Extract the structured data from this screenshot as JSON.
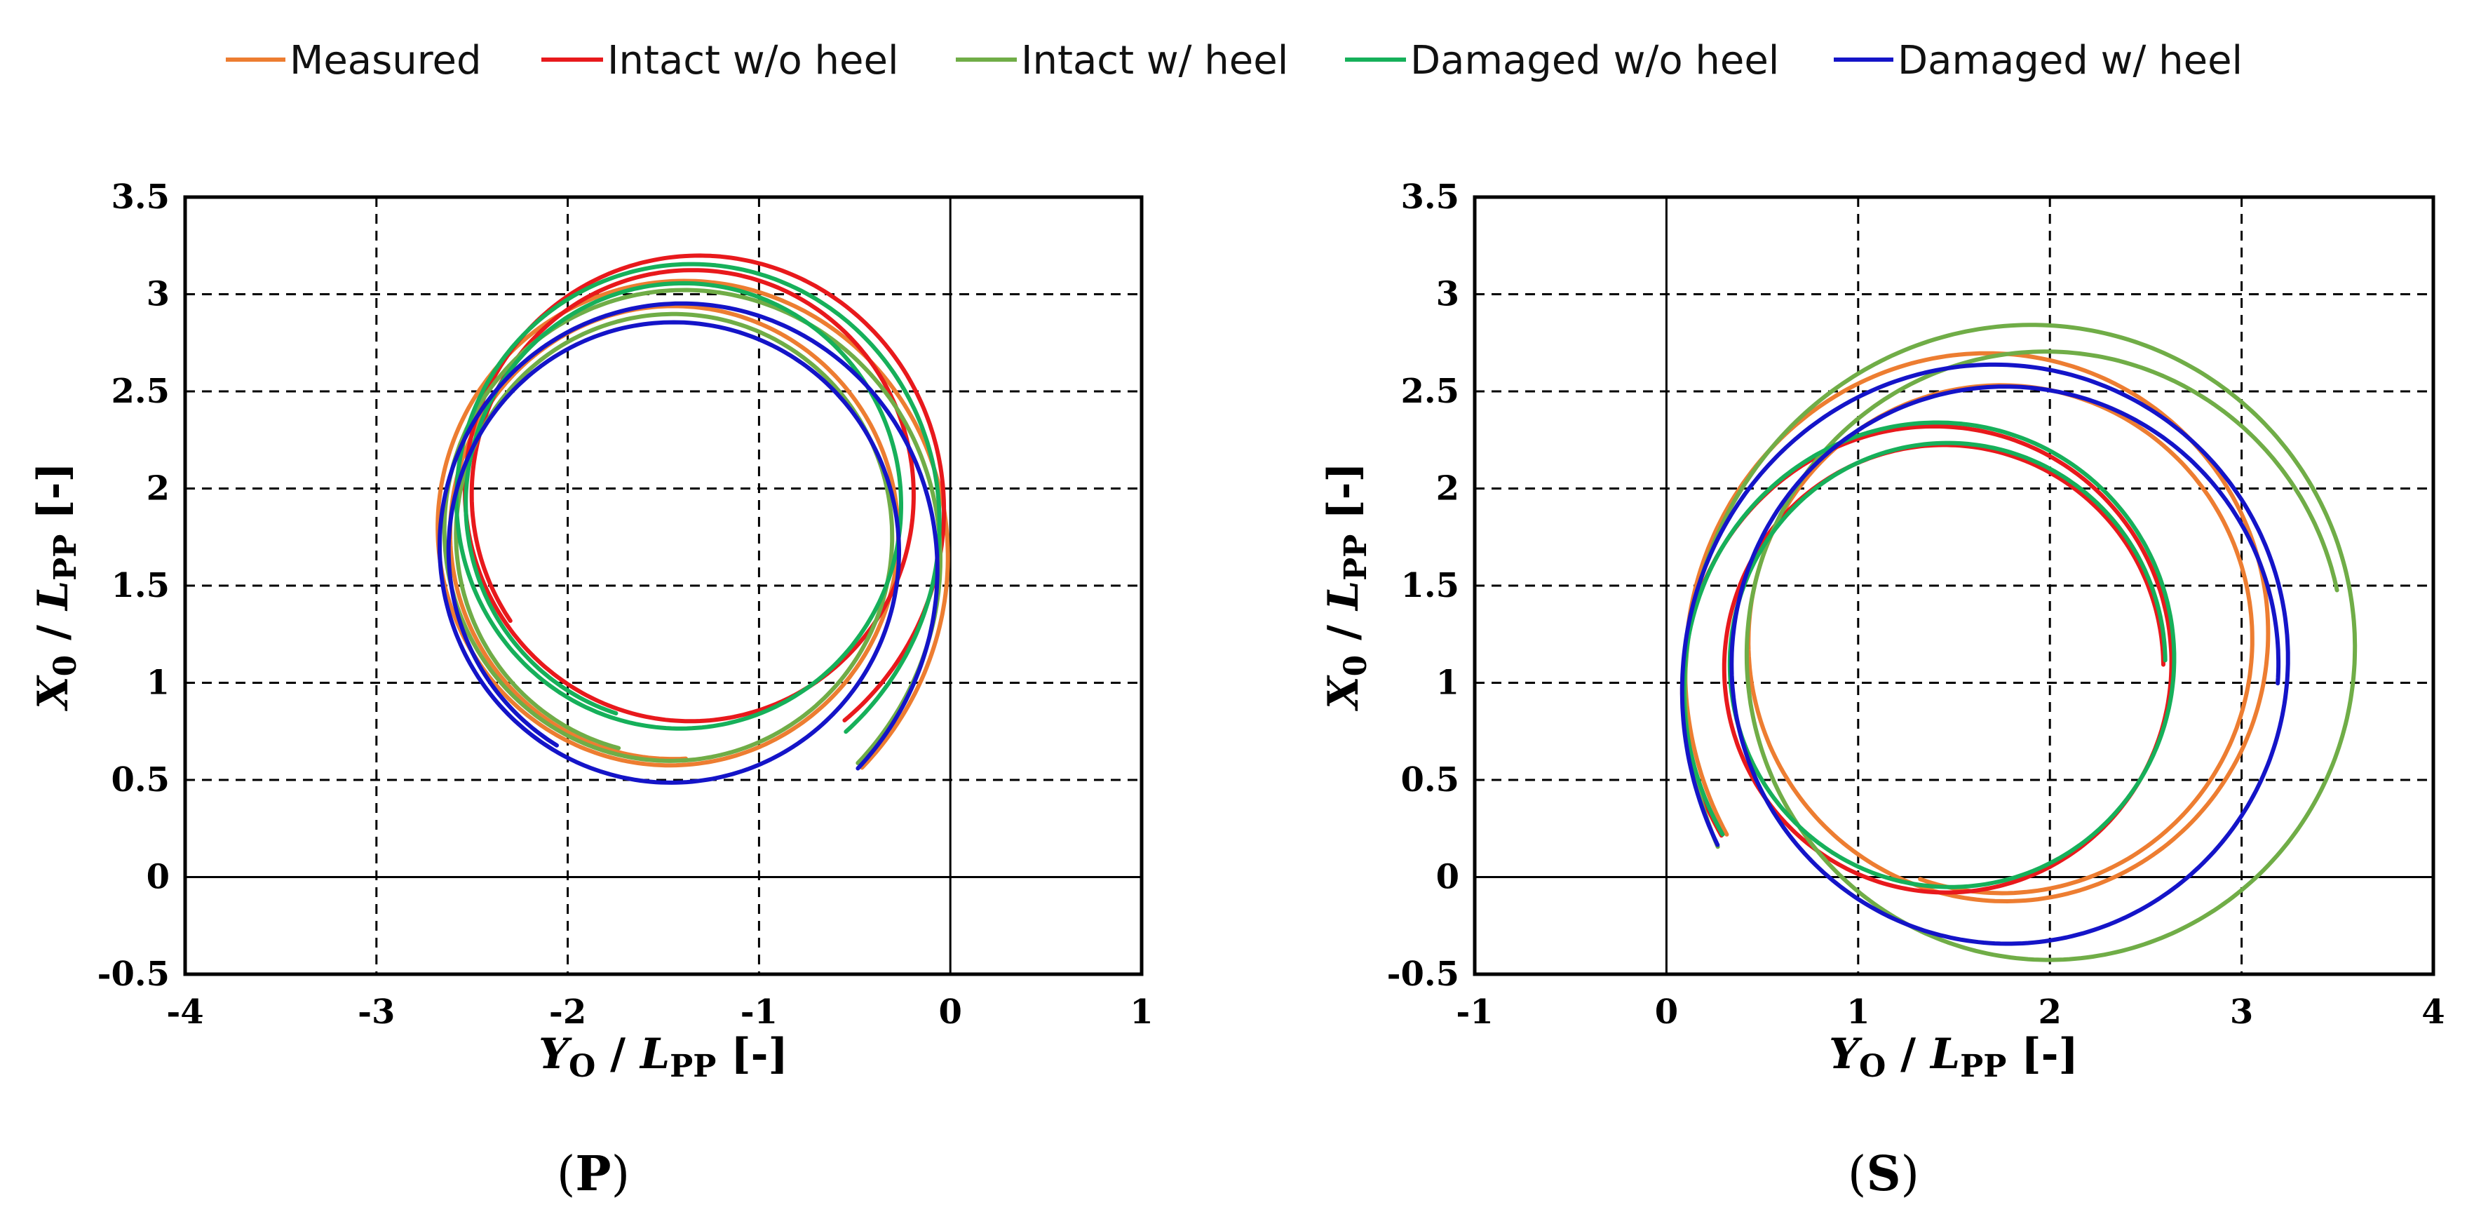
{
  "colors": {
    "measured": "#ED7D31",
    "intact_no_heel": "#E8191C",
    "intact_heel": "#70AD47",
    "damaged_no_heel": "#16B05A",
    "damaged_heel": "#1414C8"
  },
  "legend": [
    {
      "key": "measured",
      "label": "Measured"
    },
    {
      "key": "intact_no_heel",
      "label": "Intact w/o heel"
    },
    {
      "key": "intact_heel",
      "label": "Intact w/ heel"
    },
    {
      "key": "damaged_no_heel",
      "label": "Damaged w/o heel"
    },
    {
      "key": "damaged_heel",
      "label": "Damaged w/ heel"
    }
  ],
  "axis_labels": {
    "x_main": "Y",
    "x_sub": "O",
    "x_mid": " / ",
    "x_main2": "L",
    "x_sub2": "PP",
    "x_unit": " [-]",
    "y_main": "X",
    "y_sub": "0",
    "y_mid": " / ",
    "y_main2": "L",
    "y_sub2": "PP",
    "y_unit": " [-]"
  },
  "chart_data": [
    {
      "type": "line",
      "panel": "P",
      "panel_label": {
        "open": "(",
        "letter": "P",
        "close": ")"
      },
      "xlabel": "YO / LPP [-]",
      "ylabel": "X0 / LPP [-]",
      "xlim": [
        -4,
        1
      ],
      "ylim": [
        -0.5,
        3.5
      ],
      "xticks": [
        -4,
        -3,
        -2,
        -1,
        0,
        1
      ],
      "yticks": [
        -0.5,
        0,
        0.5,
        1,
        1.5,
        2,
        2.5,
        3,
        3.5
      ],
      "xtick_labels": [
        "-4",
        "-3",
        "-2",
        "-1",
        "0",
        "1"
      ],
      "ytick_labels": [
        "-0.5",
        "0",
        "0.5",
        "1",
        "1.5",
        "2",
        "2.5",
        "3",
        "3.5"
      ],
      "grid": "dashed",
      "series": [
        {
          "name": "Measured",
          "key": "measured",
          "cx": -1.45,
          "cy": 1.77,
          "r0": 1.56,
          "r1": 1.16,
          "turns": 1.9
        },
        {
          "name": "Intact w/o heel",
          "key": "intact_no_heel",
          "cx": -1.35,
          "cy": 1.97,
          "r0": 1.41,
          "r1": 1.15,
          "turns": 1.75
        },
        {
          "name": "Intact w/ heel",
          "key": "intact_heel",
          "cx": -1.45,
          "cy": 1.76,
          "r0": 1.52,
          "r1": 1.13,
          "turns": 1.85
        },
        {
          "name": "Damaged w/o heel",
          "key": "damaged_no_heel",
          "cx": -1.4,
          "cy": 1.92,
          "r0": 1.45,
          "r1": 1.13,
          "turns": 1.85
        },
        {
          "name": "Damaged w/ heel",
          "key": "damaged_heel",
          "cx": -1.45,
          "cy": 1.68,
          "r0": 1.48,
          "r1": 1.17,
          "turns": 1.8
        }
      ]
    },
    {
      "type": "line",
      "panel": "S",
      "panel_label": {
        "open": "(",
        "letter": "S",
        "close": ")"
      },
      "xlabel": "YO / LPP [-]",
      "ylabel": "X0 / LPP [-]",
      "xlim": [
        -1,
        4
      ],
      "ylim": [
        -0.5,
        3.5
      ],
      "xticks": [
        -1,
        0,
        1,
        2,
        3,
        4
      ],
      "yticks": [
        -0.5,
        0,
        0.5,
        1,
        1.5,
        2,
        2.5,
        3,
        3.5
      ],
      "xtick_labels": [
        "-1",
        "0",
        "1",
        "2",
        "3",
        "4"
      ],
      "ytick_labels": [
        "-0.5",
        "0",
        "0.5",
        "1",
        "1.5",
        "2",
        "2.5",
        "3",
        "3.5"
      ],
      "grid": "dashed",
      "series": [
        {
          "name": "Measured",
          "key": "measured",
          "cx": 1.75,
          "cy": 1.22,
          "r0": 1.75,
          "r1": 1.3,
          "turns": 1.9
        },
        {
          "name": "Intact w/o heel",
          "key": "intact_no_heel",
          "cx": 1.45,
          "cy": 1.08,
          "r0": 1.45,
          "r1": 1.14,
          "turns": 1.6
        },
        {
          "name": "Intact w/ heel",
          "key": "intact_heel",
          "cx": 1.98,
          "cy": 1.15,
          "r0": 1.98,
          "r1": 1.55,
          "turns": 1.55
        },
        {
          "name": "Damaged w/o heel",
          "key": "damaged_no_heel",
          "cx": 1.47,
          "cy": 1.1,
          "r0": 1.47,
          "r1": 1.13,
          "turns": 1.6
        },
        {
          "name": "Damaged w/ heel",
          "key": "damaged_heel",
          "cx": 1.77,
          "cy": 1.1,
          "r0": 1.77,
          "r1": 1.42,
          "turns": 1.6
        }
      ]
    }
  ]
}
